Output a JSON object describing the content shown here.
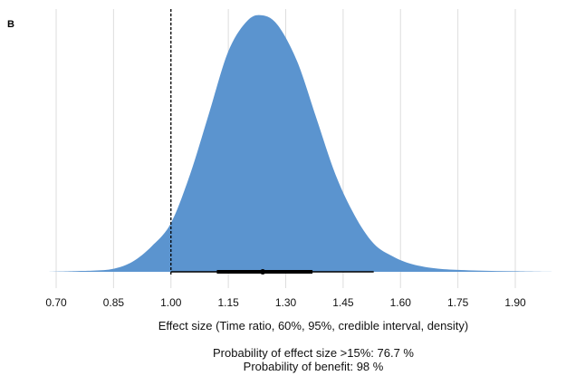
{
  "panel_label": "B",
  "captions": {
    "line1": "Probability of effect size >15%: 76.7 %",
    "line2": "Probability of benefit: 98 %"
  },
  "colors": {
    "density_fill": "#5b94cf",
    "grid": "#dedede",
    "interval": "#000000",
    "reference_line": "#000000"
  },
  "chart_data": {
    "type": "area",
    "xlabel": "Effect size (Time ratio, 60%, 95%, credible interval, density)",
    "ylabel": "",
    "xlim": [
      0.67,
      2.0
    ],
    "x_ticks": [
      0.7,
      0.85,
      1.0,
      1.15,
      1.3,
      1.45,
      1.6,
      1.75,
      1.9
    ],
    "x_tick_labels": [
      "0.70",
      "0.85",
      "1.00",
      "1.15",
      "1.30",
      "1.45",
      "1.60",
      "1.75",
      "1.90"
    ],
    "grid": true,
    "reference_line": 1.0,
    "density": {
      "x": [
        0.67,
        0.75,
        0.8,
        0.85,
        0.9,
        0.95,
        1.0,
        1.05,
        1.1,
        1.15,
        1.2,
        1.24,
        1.28,
        1.33,
        1.38,
        1.43,
        1.48,
        1.53,
        1.58,
        1.63,
        1.7,
        1.8,
        1.9,
        2.0
      ],
      "y": [
        0.0,
        0.003,
        0.005,
        0.012,
        0.04,
        0.1,
        0.19,
        0.38,
        0.62,
        0.86,
        0.98,
        1.0,
        0.96,
        0.82,
        0.6,
        0.38,
        0.22,
        0.11,
        0.06,
        0.03,
        0.012,
        0.005,
        0.002,
        0.0
      ]
    },
    "point_estimate": 1.24,
    "interval_60": [
      1.12,
      1.37
    ],
    "interval_95": [
      1.0,
      1.53
    ]
  }
}
